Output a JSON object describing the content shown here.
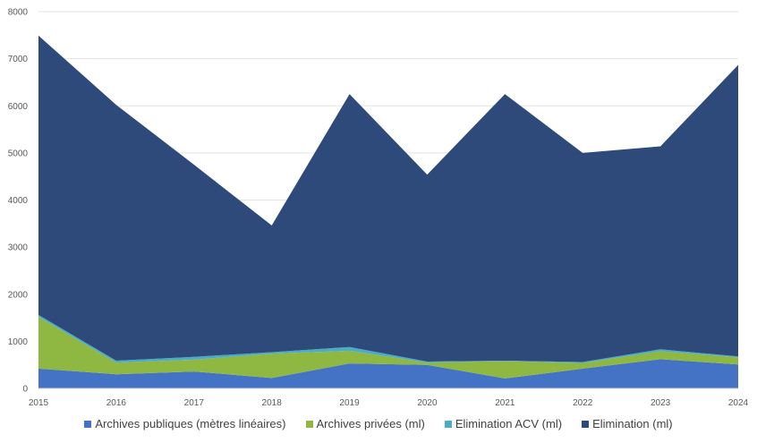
{
  "chart_data": {
    "type": "area",
    "stacked": true,
    "title": "",
    "xlabel": "",
    "ylabel": "",
    "x": [
      "2015",
      "2016",
      "2017",
      "2018",
      "2019",
      "2020",
      "2021",
      "2022",
      "2023",
      "2024"
    ],
    "ylim": [
      0,
      8000
    ],
    "yticks": [
      "0",
      "1000",
      "2000",
      "3000",
      "4000",
      "5000",
      "6000",
      "7000",
      "8000"
    ],
    "grid": true,
    "legend_position": "bottom",
    "series": [
      {
        "name": "Archives publiques (mètres linéaires)",
        "color": "#4472c4",
        "values": [
          420,
          300,
          360,
          220,
          530,
          500,
          210,
          420,
          620,
          510
        ]
      },
      {
        "name": "Archives privées (ml)",
        "color": "#8fb843",
        "values": [
          1100,
          250,
          250,
          520,
          270,
          50,
          370,
          120,
          170,
          150
        ]
      },
      {
        "name": "Elimination ACV (ml)",
        "color": "#4bacc6",
        "values": [
          40,
          40,
          60,
          30,
          80,
          20,
          10,
          20,
          40,
          20
        ]
      },
      {
        "name": "Elimination (ml)",
        "color": "#2e4a7a",
        "values": [
          5930,
          5430,
          4080,
          2690,
          5370,
          3970,
          5660,
          4440,
          4310,
          6190
        ]
      }
    ]
  }
}
